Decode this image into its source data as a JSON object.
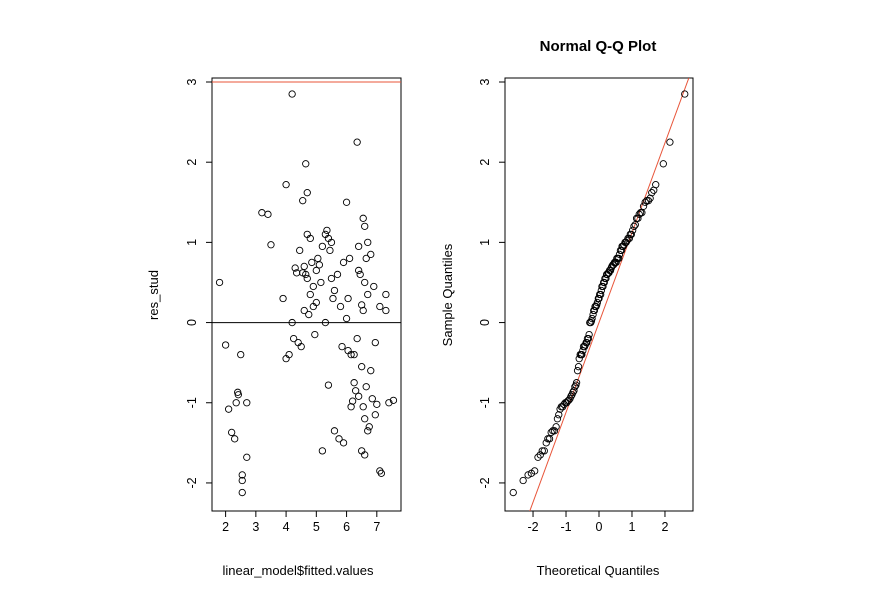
{
  "chart_data": [
    {
      "type": "scatter",
      "title": "",
      "xlabel": "linear_model$fitted.values",
      "ylabel": "res_stud",
      "xlim": [
        1.55,
        7.8
      ],
      "ylim": [
        -2.35,
        3.05
      ],
      "xticks": [
        2,
        3,
        4,
        5,
        6,
        7
      ],
      "yticks": [
        -2,
        -1,
        0,
        1,
        2,
        3
      ],
      "reference_lines": [
        {
          "type": "hline",
          "y": 0,
          "color": "#000000"
        },
        {
          "type": "hline",
          "y": 3,
          "color": "#e8553a"
        }
      ],
      "points": [
        [
          1.8,
          0.5
        ],
        [
          2.0,
          -0.28
        ],
        [
          2.1,
          -1.08
        ],
        [
          2.2,
          -1.37
        ],
        [
          2.3,
          -1.45
        ],
        [
          2.4,
          -0.87
        ],
        [
          2.42,
          -0.9
        ],
        [
          2.5,
          -0.4
        ],
        [
          2.55,
          -1.9
        ],
        [
          2.55,
          -1.97
        ],
        [
          2.55,
          -2.12
        ],
        [
          2.7,
          -1.0
        ],
        [
          2.7,
          -1.68
        ],
        [
          3.2,
          1.37
        ],
        [
          3.4,
          1.35
        ],
        [
          3.5,
          0.97
        ],
        [
          3.9,
          0.3
        ],
        [
          4.0,
          1.72
        ],
        [
          4.0,
          -0.45
        ],
        [
          4.1,
          -0.4
        ],
        [
          4.2,
          2.85
        ],
        [
          4.2,
          0.0
        ],
        [
          4.3,
          0.68
        ],
        [
          4.35,
          0.62
        ],
        [
          4.4,
          -0.25
        ],
        [
          4.45,
          0.9
        ],
        [
          4.5,
          -0.3
        ],
        [
          4.55,
          1.52
        ],
        [
          4.6,
          0.15
        ],
        [
          4.6,
          0.7
        ],
        [
          4.65,
          1.98
        ],
        [
          4.65,
          0.6
        ],
        [
          4.7,
          1.1
        ],
        [
          4.7,
          0.55
        ],
        [
          4.7,
          1.62
        ],
        [
          4.75,
          0.1
        ],
        [
          4.8,
          1.05
        ],
        [
          4.8,
          0.35
        ],
        [
          4.85,
          0.75
        ],
        [
          4.9,
          0.2
        ],
        [
          4.95,
          -0.15
        ],
        [
          5.0,
          0.65
        ],
        [
          5.0,
          0.25
        ],
        [
          5.05,
          0.8
        ],
        [
          5.1,
          0.72
        ],
        [
          5.15,
          0.5
        ],
        [
          5.2,
          0.95
        ],
        [
          5.2,
          -1.6
        ],
        [
          5.3,
          0.0
        ],
        [
          5.3,
          1.1
        ],
        [
          5.35,
          1.15
        ],
        [
          5.4,
          1.05
        ],
        [
          5.4,
          -0.78
        ],
        [
          5.45,
          0.9
        ],
        [
          5.5,
          1.0
        ],
        [
          5.5,
          0.55
        ],
        [
          5.55,
          0.3
        ],
        [
          5.6,
          0.4
        ],
        [
          5.6,
          -1.35
        ],
        [
          5.7,
          0.6
        ],
        [
          5.75,
          -1.45
        ],
        [
          5.8,
          0.2
        ],
        [
          5.9,
          -1.5
        ],
        [
          6.0,
          1.5
        ],
        [
          6.0,
          0.05
        ],
        [
          6.05,
          -0.35
        ],
        [
          6.1,
          0.8
        ],
        [
          6.15,
          -0.4
        ],
        [
          6.2,
          -0.98
        ],
        [
          6.25,
          -0.4
        ],
        [
          6.3,
          -0.85
        ],
        [
          6.35,
          2.25
        ],
        [
          6.35,
          -0.2
        ],
        [
          6.4,
          0.95
        ],
        [
          6.4,
          0.65
        ],
        [
          6.4,
          -0.92
        ],
        [
          6.45,
          0.6
        ],
        [
          6.5,
          0.22
        ],
        [
          6.5,
          -0.55
        ],
        [
          6.5,
          -1.6
        ],
        [
          6.55,
          1.3
        ],
        [
          6.55,
          0.15
        ],
        [
          6.6,
          1.2
        ],
        [
          6.6,
          0.5
        ],
        [
          6.6,
          -1.65
        ],
        [
          6.65,
          0.8
        ],
        [
          6.65,
          -0.8
        ],
        [
          6.7,
          1.0
        ],
        [
          6.7,
          0.35
        ],
        [
          6.7,
          -1.35
        ],
        [
          6.75,
          -1.3
        ],
        [
          6.8,
          0.85
        ],
        [
          6.8,
          -0.6
        ],
        [
          6.85,
          -0.95
        ],
        [
          6.9,
          0.45
        ],
        [
          6.95,
          -0.25
        ],
        [
          6.95,
          -1.15
        ],
        [
          7.0,
          -1.02
        ],
        [
          7.1,
          -1.85
        ],
        [
          7.15,
          -1.88
        ],
        [
          7.3,
          0.35
        ],
        [
          7.3,
          0.15
        ],
        [
          7.4,
          -1.0
        ],
        [
          7.55,
          -0.97
        ],
        [
          7.1,
          0.2
        ],
        [
          6.15,
          -1.05
        ],
        [
          6.55,
          -1.05
        ],
        [
          6.25,
          -0.75
        ],
        [
          5.9,
          0.75
        ],
        [
          4.9,
          0.45
        ],
        [
          4.55,
          0.62
        ],
        [
          6.05,
          0.3
        ],
        [
          5.85,
          -0.3
        ],
        [
          4.25,
          -0.2
        ],
        [
          6.6,
          -1.2
        ],
        [
          2.35,
          -1.0
        ]
      ]
    },
    {
      "type": "scatter",
      "title": "Normal Q-Q Plot",
      "xlabel": "Theoretical Quantiles",
      "ylabel": "Sample Quantiles",
      "xlim": [
        -2.85,
        2.85
      ],
      "ylim": [
        -2.35,
        3.05
      ],
      "xticks": [
        -2,
        -1,
        0,
        1,
        2
      ],
      "yticks": [
        -2,
        -1,
        0,
        1,
        2,
        3
      ],
      "reference_lines": [
        {
          "type": "abline",
          "intercept": 0,
          "slope": 1.12,
          "color": "#e8553a"
        }
      ],
      "points": [
        [
          -2.6,
          -2.12
        ],
        [
          -2.3,
          -1.97
        ],
        [
          -2.15,
          -1.9
        ],
        [
          -2.05,
          -1.88
        ],
        [
          -1.95,
          -1.85
        ],
        [
          -1.85,
          -1.68
        ],
        [
          -1.78,
          -1.65
        ],
        [
          -1.72,
          -1.6
        ],
        [
          -1.66,
          -1.6
        ],
        [
          -1.6,
          -1.5
        ],
        [
          -1.55,
          -1.45
        ],
        [
          -1.5,
          -1.45
        ],
        [
          -1.45,
          -1.37
        ],
        [
          -1.4,
          -1.35
        ],
        [
          -1.35,
          -1.35
        ],
        [
          -1.3,
          -1.3
        ],
        [
          -1.26,
          -1.2
        ],
        [
          -1.22,
          -1.15
        ],
        [
          -1.18,
          -1.08
        ],
        [
          -1.14,
          -1.05
        ],
        [
          -1.1,
          -1.05
        ],
        [
          -1.06,
          -1.02
        ],
        [
          -1.02,
          -1.0
        ],
        [
          -0.98,
          -1.0
        ],
        [
          -0.95,
          -0.98
        ],
        [
          -0.92,
          -0.97
        ],
        [
          -0.88,
          -0.95
        ],
        [
          -0.85,
          -0.92
        ],
        [
          -0.82,
          -0.9
        ],
        [
          -0.79,
          -0.87
        ],
        [
          -0.76,
          -0.85
        ],
        [
          -0.73,
          -0.8
        ],
        [
          -0.7,
          -0.78
        ],
        [
          -0.68,
          -0.75
        ],
        [
          -0.65,
          -0.6
        ],
        [
          -0.62,
          -0.55
        ],
        [
          -0.6,
          -0.45
        ],
        [
          -0.57,
          -0.4
        ],
        [
          -0.54,
          -0.4
        ],
        [
          -0.52,
          -0.4
        ],
        [
          -0.49,
          -0.35
        ],
        [
          -0.47,
          -0.3
        ],
        [
          -0.44,
          -0.3
        ],
        [
          -0.42,
          -0.28
        ],
        [
          -0.39,
          -0.25
        ],
        [
          -0.37,
          -0.25
        ],
        [
          -0.35,
          -0.2
        ],
        [
          -0.32,
          -0.2
        ],
        [
          -0.3,
          -0.15
        ],
        [
          -0.28,
          0.0
        ],
        [
          -0.25,
          0.0
        ],
        [
          -0.23,
          0.02
        ],
        [
          -0.21,
          0.05
        ],
        [
          -0.18,
          0.1
        ],
        [
          -0.16,
          0.15
        ],
        [
          -0.14,
          0.15
        ],
        [
          -0.12,
          0.2
        ],
        [
          -0.09,
          0.2
        ],
        [
          -0.07,
          0.22
        ],
        [
          -0.05,
          0.25
        ],
        [
          -0.02,
          0.3
        ],
        [
          0.0,
          0.3
        ],
        [
          0.02,
          0.35
        ],
        [
          0.05,
          0.35
        ],
        [
          0.07,
          0.4
        ],
        [
          0.09,
          0.45
        ],
        [
          0.12,
          0.45
        ],
        [
          0.14,
          0.5
        ],
        [
          0.16,
          0.5
        ],
        [
          0.18,
          0.55
        ],
        [
          0.21,
          0.55
        ],
        [
          0.23,
          0.6
        ],
        [
          0.25,
          0.6
        ],
        [
          0.28,
          0.62
        ],
        [
          0.3,
          0.62
        ],
        [
          0.32,
          0.65
        ],
        [
          0.35,
          0.65
        ],
        [
          0.37,
          0.68
        ],
        [
          0.39,
          0.7
        ],
        [
          0.42,
          0.72
        ],
        [
          0.44,
          0.72
        ],
        [
          0.47,
          0.75
        ],
        [
          0.49,
          0.75
        ],
        [
          0.52,
          0.75
        ],
        [
          0.54,
          0.8
        ],
        [
          0.57,
          0.8
        ],
        [
          0.6,
          0.8
        ],
        [
          0.62,
          0.85
        ],
        [
          0.65,
          0.9
        ],
        [
          0.68,
          0.9
        ],
        [
          0.7,
          0.95
        ],
        [
          0.73,
          0.95
        ],
        [
          0.76,
          0.97
        ],
        [
          0.79,
          1.0
        ],
        [
          0.82,
          1.0
        ],
        [
          0.85,
          1.02
        ],
        [
          0.88,
          1.05
        ],
        [
          0.92,
          1.05
        ],
        [
          0.95,
          1.1
        ],
        [
          0.98,
          1.1
        ],
        [
          1.02,
          1.15
        ],
        [
          1.06,
          1.2
        ],
        [
          1.1,
          1.22
        ],
        [
          1.14,
          1.3
        ],
        [
          1.18,
          1.3
        ],
        [
          1.22,
          1.35
        ],
        [
          1.26,
          1.37
        ],
        [
          1.3,
          1.37
        ],
        [
          1.35,
          1.45
        ],
        [
          1.4,
          1.5
        ],
        [
          1.45,
          1.52
        ],
        [
          1.5,
          1.52
        ],
        [
          1.55,
          1.55
        ],
        [
          1.6,
          1.62
        ],
        [
          1.66,
          1.65
        ],
        [
          1.72,
          1.72
        ],
        [
          1.95,
          1.98
        ],
        [
          2.15,
          2.25
        ],
        [
          2.6,
          2.85
        ]
      ]
    }
  ]
}
